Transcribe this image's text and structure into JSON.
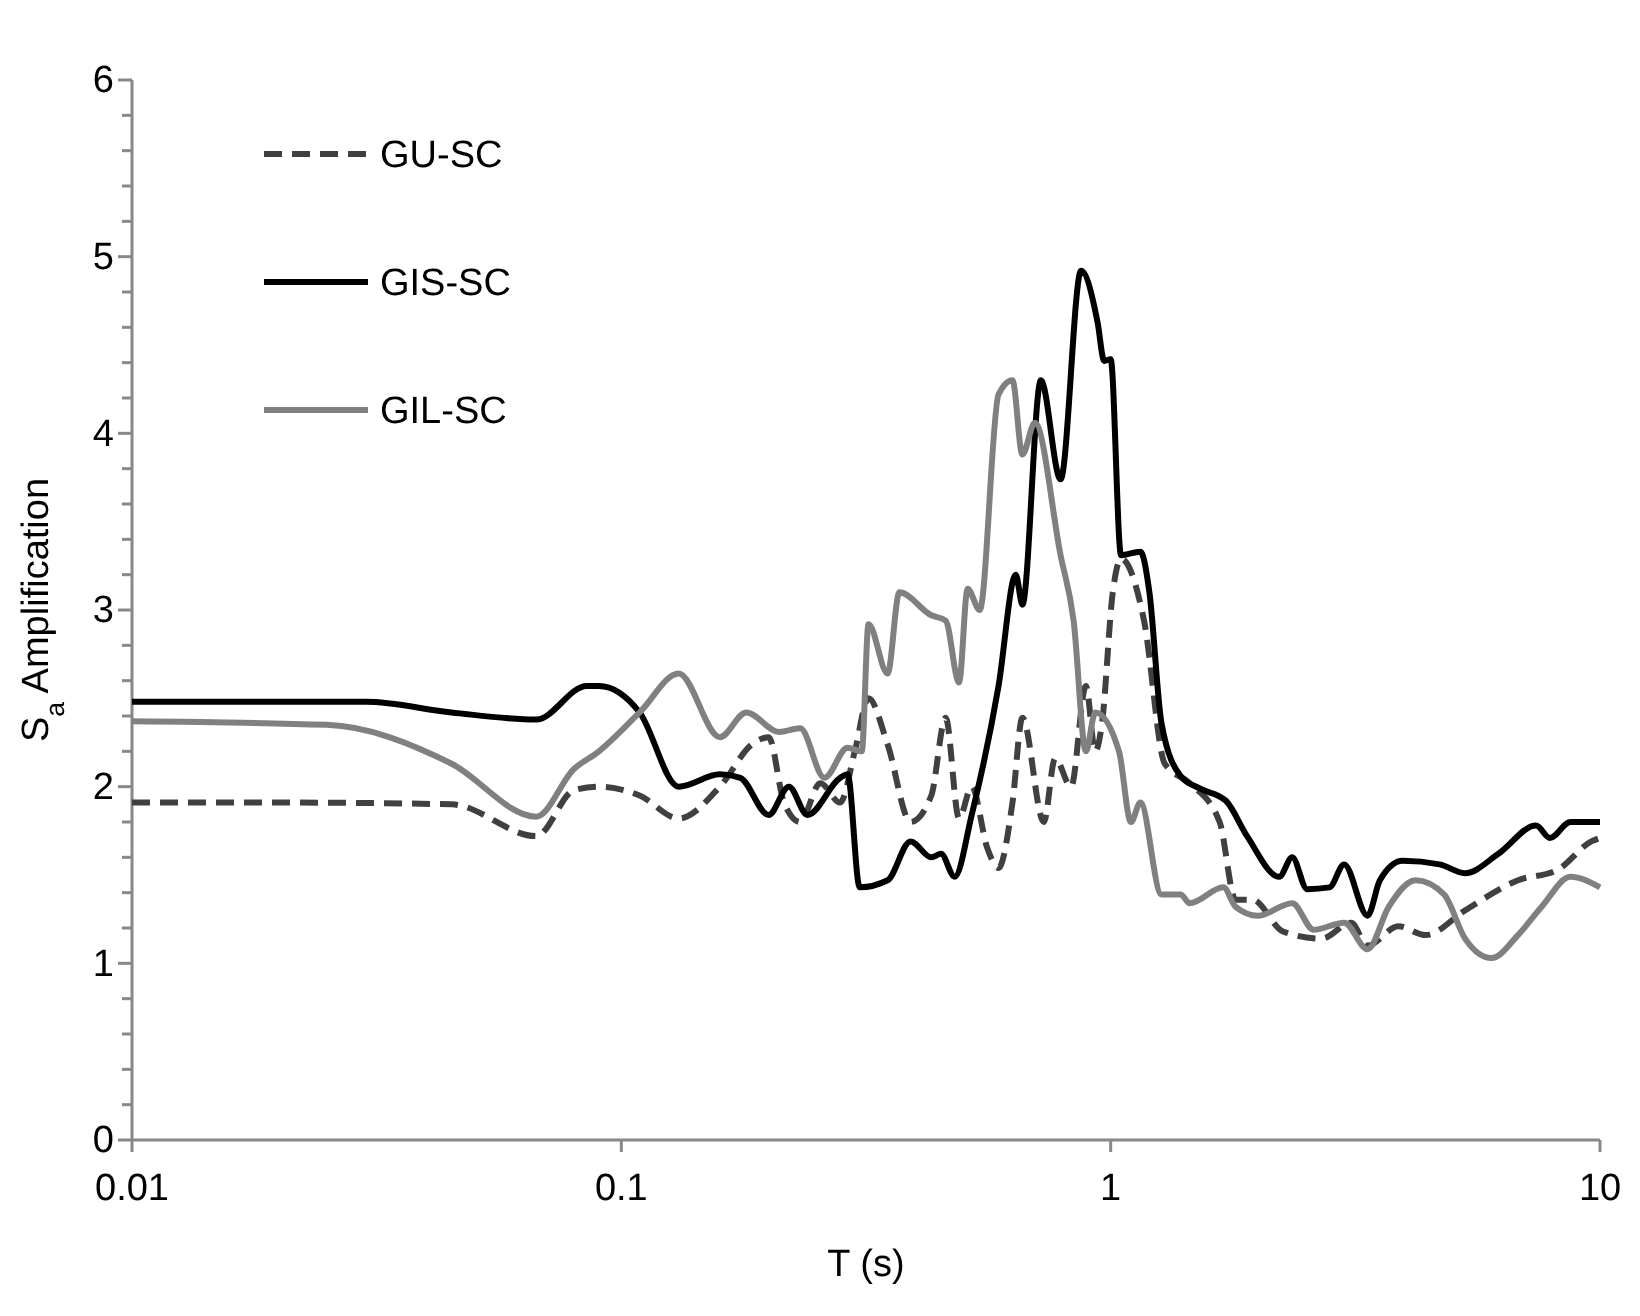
{
  "chart_data": {
    "type": "line",
    "xlabel": "T (s)",
    "ylabel": "S$_{a}$ Amplification",
    "log": "x",
    "xlim": [
      0.01,
      10
    ],
    "xticks": [
      0.01,
      0.1,
      1,
      10
    ],
    "ylim": [
      0,
      6
    ],
    "yticks": [
      0,
      {
        "value": 0.2,
        "label": null
      },
      {
        "value": 0.4,
        "label": null
      },
      {
        "value": 0.6,
        "label": null
      },
      {
        "value": 0.8,
        "label": null
      },
      1,
      {
        "value": 1.2,
        "label": null
      },
      {
        "value": 1.4,
        "label": null
      },
      {
        "value": 1.6,
        "label": null
      },
      {
        "value": 1.8,
        "label": null
      },
      2,
      {
        "value": 2.2,
        "label": null
      },
      {
        "value": 2.4,
        "label": null
      },
      {
        "value": 2.6,
        "label": null
      },
      {
        "value": 2.8,
        "label": null
      },
      3,
      {
        "value": 3.2,
        "label": null
      },
      {
        "value": 3.4,
        "label": null
      },
      {
        "value": 3.6,
        "label": null
      },
      {
        "value": 3.8,
        "label": null
      },
      4,
      {
        "value": 4.2,
        "label": null
      },
      {
        "value": 4.4,
        "label": null
      },
      {
        "value": 4.6,
        "label": null
      },
      {
        "value": 4.8,
        "label": null
      },
      5,
      {
        "value": 5.2,
        "label": null
      },
      {
        "value": 5.4,
        "label": null
      },
      {
        "value": 5.6,
        "label": null
      },
      {
        "value": 5.8,
        "label": null
      },
      6
    ],
    "grid": false,
    "legend": "top left",
    "marker": "none",
    "series": [
      {
        "name": "GU-SC",
        "color": "#404040",
        "line_style": "dashed",
        "x": [
          0.01,
          0.02,
          0.045,
          0.067,
          0.08,
          0.09,
          0.109,
          0.131,
          0.159,
          0.185,
          0.2,
          0.215,
          0.232,
          0.255,
          0.28,
          0.3,
          0.32,
          0.35,
          0.39,
          0.43,
          0.46,
          0.49,
          0.52,
          0.56,
          0.59,
          0.63,
          0.66,
          0.73,
          0.77,
          0.83,
          0.89,
          0.93,
          0.96,
          1.01,
          1.05,
          1.17,
          1.29,
          1.45,
          1.67,
          1.8,
          1.95,
          2.25,
          2.7,
          3.1,
          3.35,
          3.87,
          4.4,
          5.3,
          6.8,
          8.2,
          9.6,
          10
        ],
        "values": [
          1.91,
          1.91,
          1.9,
          1.72,
          1.98,
          2.0,
          1.95,
          1.82,
          2.0,
          2.24,
          2.28,
          1.91,
          1.8,
          2.02,
          1.91,
          2.2,
          2.5,
          2.24,
          1.8,
          1.95,
          2.39,
          1.82,
          2.0,
          1.65,
          1.54,
          1.91,
          2.39,
          1.8,
          2.16,
          2.0,
          2.57,
          2.2,
          2.36,
          3.1,
          3.29,
          2.94,
          2.13,
          2.02,
          1.8,
          1.36,
          1.36,
          1.18,
          1.14,
          1.23,
          1.1,
          1.21,
          1.16,
          1.3,
          1.47,
          1.53,
          1.69,
          1.71
        ]
      },
      {
        "name": "GIS-SC",
        "color": "#000000",
        "line_style": "solid",
        "x": [
          0.01,
          0.03,
          0.045,
          0.067,
          0.085,
          0.09,
          0.109,
          0.131,
          0.159,
          0.175,
          0.2,
          0.22,
          0.24,
          0.28,
          0.29,
          0.307,
          0.35,
          0.39,
          0.43,
          0.45,
          0.48,
          0.52,
          0.59,
          0.64,
          0.66,
          0.72,
          0.79,
          0.87,
          0.94,
          0.97,
          1.0,
          1.05,
          1.15,
          1.2,
          1.27,
          1.39,
          1.52,
          1.72,
          1.9,
          2.21,
          2.35,
          2.52,
          2.8,
          3.0,
          3.35,
          3.55,
          3.95,
          4.7,
          5.3,
          6.2,
          7.4,
          7.9,
          8.7,
          10
        ],
        "values": [
          2.48,
          2.48,
          2.42,
          2.38,
          2.57,
          2.57,
          2.42,
          2.0,
          2.07,
          2.05,
          1.84,
          2.0,
          1.84,
          2.05,
          2.07,
          1.43,
          1.47,
          1.69,
          1.6,
          1.62,
          1.49,
          1.84,
          2.57,
          3.2,
          3.03,
          4.3,
          3.74,
          4.92,
          4.63,
          4.41,
          4.42,
          3.31,
          3.33,
          3.1,
          2.36,
          2.06,
          1.99,
          1.92,
          1.72,
          1.49,
          1.6,
          1.42,
          1.43,
          1.56,
          1.27,
          1.47,
          1.58,
          1.56,
          1.51,
          1.62,
          1.78,
          1.71,
          1.8,
          1.8
        ]
      },
      {
        "name": "GIL-SC",
        "color": "#808080",
        "line_style": "solid",
        "x": [
          0.01,
          0.025,
          0.045,
          0.067,
          0.08,
          0.09,
          0.109,
          0.131,
          0.159,
          0.18,
          0.21,
          0.232,
          0.26,
          0.29,
          0.31,
          0.32,
          0.35,
          0.37,
          0.43,
          0.46,
          0.49,
          0.51,
          0.54,
          0.59,
          0.63,
          0.66,
          0.7,
          0.79,
          0.84,
          0.89,
          0.93,
          1.04,
          1.1,
          1.15,
          1.27,
          1.39,
          1.45,
          1.7,
          1.8,
          2.0,
          2.35,
          2.6,
          3.0,
          3.35,
          3.7,
          4.2,
          4.8,
          5.3,
          6.0,
          6.8,
          7.6,
          8.7,
          10
        ],
        "values": [
          2.37,
          2.35,
          2.13,
          1.83,
          2.1,
          2.2,
          2.42,
          2.64,
          2.28,
          2.42,
          2.31,
          2.33,
          2.05,
          2.22,
          2.2,
          2.92,
          2.64,
          3.1,
          2.97,
          2.94,
          2.59,
          3.12,
          3.0,
          4.22,
          4.3,
          3.88,
          4.06,
          3.31,
          2.94,
          2.2,
          2.42,
          2.2,
          1.8,
          1.91,
          1.39,
          1.39,
          1.34,
          1.43,
          1.32,
          1.27,
          1.34,
          1.19,
          1.23,
          1.08,
          1.32,
          1.47,
          1.39,
          1.14,
          1.03,
          1.16,
          1.32,
          1.49,
          1.43
        ]
      }
    ]
  }
}
